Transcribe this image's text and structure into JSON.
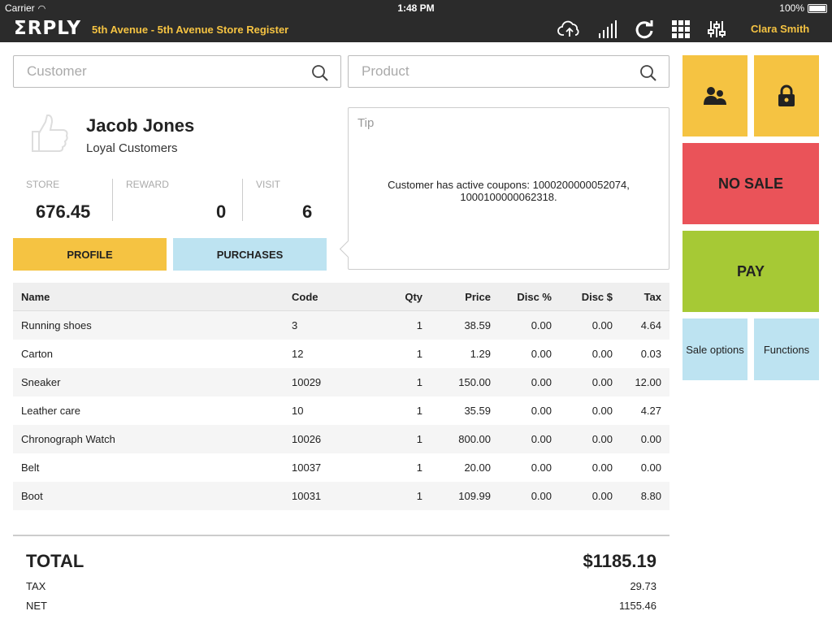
{
  "status_bar": {
    "carrier": "Carrier",
    "time": "1:48 PM",
    "battery": "100%"
  },
  "nav": {
    "logo": "ΣRPLY",
    "store_title": "5th Avenue - 5th Avenue Store Register",
    "user_name": "Clara Smith",
    "icons": [
      "cloud-upload-icon",
      "signal-icon",
      "refresh-icon",
      "grid-icon",
      "settings-sliders-icon"
    ]
  },
  "search": {
    "customer_placeholder": "Customer",
    "product_placeholder": "Product"
  },
  "customer": {
    "name": "Jacob Jones",
    "group": "Loyal Customers",
    "stats": [
      {
        "label": "STORE",
        "value": "676.45"
      },
      {
        "label": "REWARD",
        "value": "0"
      },
      {
        "label": "VISIT",
        "value": "6"
      }
    ],
    "profile_label": "PROFILE",
    "purchases_label": "PURCHASES"
  },
  "tip": {
    "title": "Tip",
    "message": "Customer has active coupons: 1000200000052074, 1000100000062318."
  },
  "table": {
    "headers": {
      "name": "Name",
      "code": "Code",
      "qty": "Qty",
      "price": "Price",
      "disc_pct": "Disc %",
      "disc_amt": "Disc $",
      "tax": "Tax"
    },
    "rows": [
      {
        "name": "Running shoes",
        "code": "3",
        "qty": "1",
        "price": "38.59",
        "disc_pct": "0.00",
        "disc_amt": "0.00",
        "tax": "4.64"
      },
      {
        "name": "Carton",
        "code": "12",
        "qty": "1",
        "price": "1.29",
        "disc_pct": "0.00",
        "disc_amt": "0.00",
        "tax": "0.03"
      },
      {
        "name": "Sneaker",
        "code": "10029",
        "qty": "1",
        "price": "150.00",
        "disc_pct": "0.00",
        "disc_amt": "0.00",
        "tax": "12.00"
      },
      {
        "name": "Leather care",
        "code": "10",
        "qty": "1",
        "price": "35.59",
        "disc_pct": "0.00",
        "disc_amt": "0.00",
        "tax": "4.27"
      },
      {
        "name": "Chronograph Watch",
        "code": "10026",
        "qty": "1",
        "price": "800.00",
        "disc_pct": "0.00",
        "disc_amt": "0.00",
        "tax": "0.00"
      },
      {
        "name": "Belt",
        "code": "10037",
        "qty": "1",
        "price": "20.00",
        "disc_pct": "0.00",
        "disc_amt": "0.00",
        "tax": "0.00"
      },
      {
        "name": "Boot",
        "code": "10031",
        "qty": "1",
        "price": "109.99",
        "disc_pct": "0.00",
        "disc_amt": "0.00",
        "tax": "8.80"
      }
    ]
  },
  "totals": {
    "total_label": "TOTAL",
    "total_value": "$1185.19",
    "tax_label": "TAX",
    "tax_value": "29.73",
    "net_label": "NET",
    "net_value": "1155.46"
  },
  "actions": {
    "no_sale": "NO SALE",
    "pay": "PAY",
    "sale_options": "Sale options",
    "functions": "Functions"
  },
  "colors": {
    "header_bg": "#2b2b2b",
    "accent_yellow": "#f5c342",
    "no_sale_red": "#ea5359",
    "pay_green": "#a6c935",
    "light_blue": "#bde3f1"
  }
}
